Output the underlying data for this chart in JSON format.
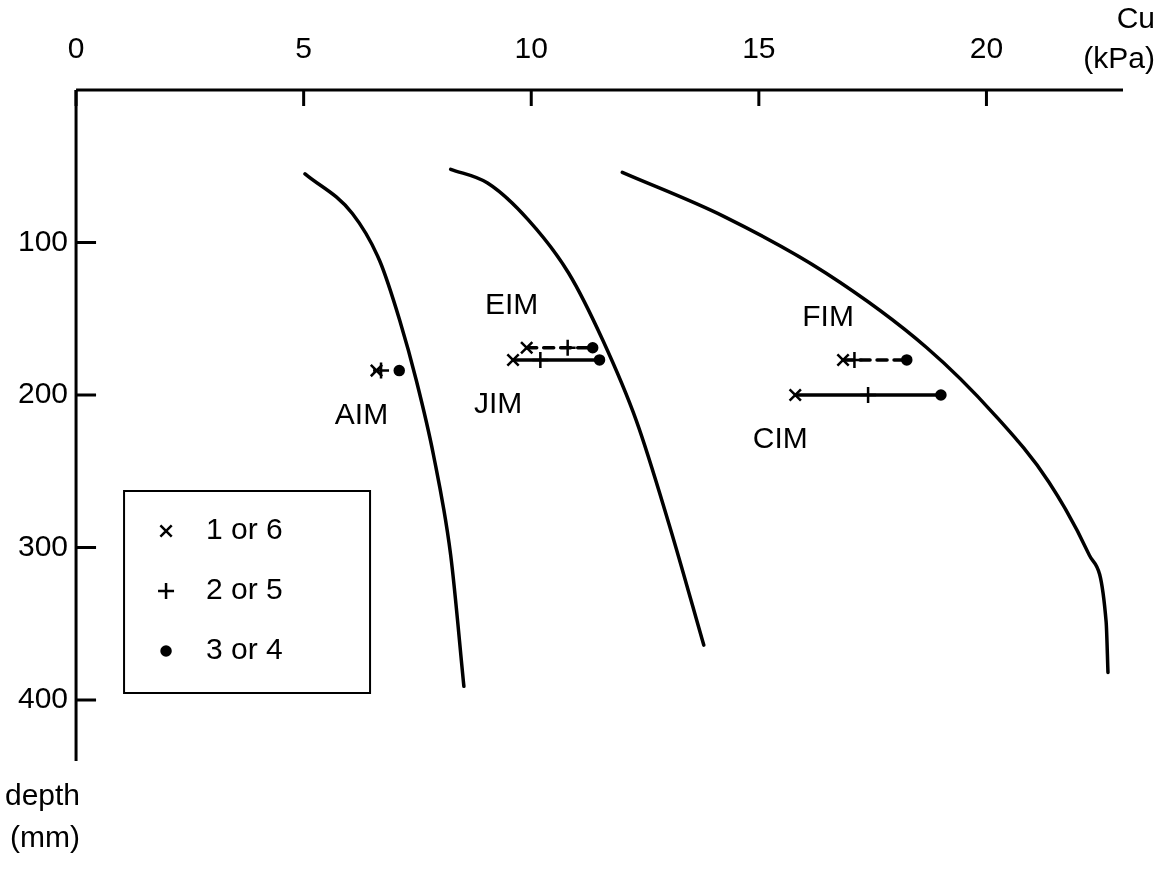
{
  "chart_data": {
    "type": "scatter",
    "xlabel": "Cu (kPa)",
    "ylabel": "depth (mm)",
    "xlim": [
      0,
      23
    ],
    "xticks": [
      0,
      5,
      10,
      15,
      20
    ],
    "ylim": [
      440,
      0
    ],
    "yticks": [
      100,
      200,
      300,
      400
    ],
    "grid": false,
    "legend": "bottom left",
    "annotations": [
      {
        "text": "AIM",
        "x": 6.6,
        "y": 184
      },
      {
        "text": "EIM",
        "x": 9.9,
        "y": 169
      },
      {
        "text": "JIM",
        "x": 9.6,
        "y": 177
      },
      {
        "text": "FIM",
        "x": 16.85,
        "y": 177
      },
      {
        "text": "CIM",
        "x": 15.8,
        "y": 200
      }
    ],
    "series": [
      {
        "type": "line",
        "color": "#000000",
        "marker": "none",
        "line_style": "solid",
        "x": [
          5.03,
          6.07,
          6.67,
          7.11,
          7.48,
          7.85,
          8.23,
          8.52
        ],
        "values": [
          55,
          81,
          112,
          151,
          191,
          239,
          305,
          391
        ]
      },
      {
        "type": "line",
        "color": "#000000",
        "marker": "none",
        "line_style": "solid",
        "x": [
          8.23,
          9.04,
          9.93,
          10.82,
          11.57,
          12.31,
          13.05,
          13.79
        ],
        "values": [
          52,
          61,
          85,
          120,
          164,
          217,
          287,
          364
        ]
      },
      {
        "type": "line",
        "color": "#000000",
        "marker": "none",
        "line_style": "solid",
        "x": [
          12.0,
          14.24,
          16.47,
          18.69,
          20.18,
          21.37,
          22.26,
          22.63,
          22.67
        ],
        "values": [
          54,
          83,
          120,
          169,
          213,
          257,
          305,
          349,
          382
        ]
      },
      {
        "type": "line",
        "color": "#000000",
        "marker": "none",
        "line_style": "dashed",
        "x": [
          9.9,
          10.8,
          11.35
        ],
        "values": [
          169,
          169,
          169
        ]
      },
      {
        "type": "line",
        "color": "#000000",
        "marker": "none",
        "line_style": "solid",
        "x": [
          9.6,
          10.2,
          11.5
        ],
        "values": [
          177,
          177,
          177
        ]
      },
      {
        "type": "line",
        "color": "#000000",
        "marker": "none",
        "line_style": "dashed",
        "x": [
          16.85,
          17.1,
          18.25
        ],
        "values": [
          177,
          177,
          177
        ]
      },
      {
        "type": "line",
        "color": "#000000",
        "marker": "none",
        "line_style": "solid",
        "x": [
          15.8,
          17.4,
          19.0
        ],
        "values": [
          200,
          200,
          200
        ]
      },
      {
        "name": "1 or 6",
        "color": "#000000",
        "marker": "cross",
        "x": [
          6.6,
          9.9,
          9.6,
          16.85,
          15.8
        ],
        "values": [
          184,
          169,
          177,
          177,
          200
        ]
      },
      {
        "name": "2 or 5",
        "color": "#000000",
        "marker": "plus",
        "x": [
          6.7,
          10.8,
          10.2,
          17.1,
          17.4
        ],
        "values": [
          184,
          169,
          177,
          177,
          200
        ]
      },
      {
        "name": "3 or 4",
        "color": "#000000",
        "marker": "circle",
        "x": [
          7.1,
          11.35,
          11.5,
          18.25,
          19.0
        ],
        "values": [
          184,
          169,
          177,
          177,
          200
        ]
      }
    ]
  }
}
